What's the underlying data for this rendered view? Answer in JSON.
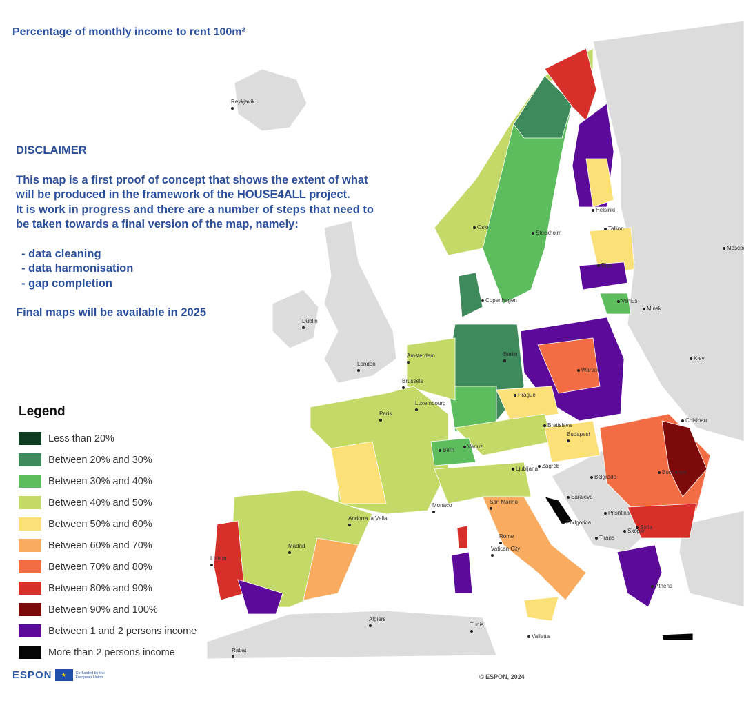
{
  "title": "Percentage of monthly income to rent 100m²",
  "disclaimer": {
    "heading": "DISCLAIMER",
    "paragraph": "This map is a first proof of concept that shows the extent of what will be produced in the framework of the HOUSE4ALL project.",
    "paragraph2": "It is work in progress and there are a number of steps that need to be taken towards a final version of the map, namely:",
    "steps": [
      "- data cleaning",
      "- data harmonisation",
      "- gap completion"
    ],
    "final": "Final maps will be available in 2025"
  },
  "legend": {
    "title": "Legend",
    "items": [
      {
        "label": "Less than 20%",
        "color": "#0f3d22"
      },
      {
        "label": "Between 20% and 30%",
        "color": "#3e8a5c"
      },
      {
        "label": "Between 30% and 40%",
        "color": "#5dbd5e"
      },
      {
        "label": "Between 40% and 50%",
        "color": "#c3d968"
      },
      {
        "label": "Between 50% and 60%",
        "color": "#fbdf77"
      },
      {
        "label": "Between 60% and 70%",
        "color": "#f9ab5f"
      },
      {
        "label": "Between 70% and 80%",
        "color": "#f26d43"
      },
      {
        "label": "Between 80% and 90%",
        "color": "#d7302a"
      },
      {
        "label": "Between 90% and 100%",
        "color": "#7d0a0a"
      },
      {
        "label": "Between 1 and 2 persons income",
        "color": "#5b0a9a"
      },
      {
        "label": "More than 2 persons income",
        "color": "#050505"
      }
    ]
  },
  "cities": [
    "Reykjavik",
    "Oslo",
    "Stockholm",
    "Helsinki",
    "Tallinn",
    "Riga",
    "Moscow",
    "Vilnius",
    "Minsk",
    "Copenhagen",
    "Dublin",
    "London",
    "Amsterdam",
    "Berlin",
    "Warsaw",
    "Kiev",
    "Brussels",
    "Luxembourg",
    "Prague",
    "Paris",
    "Bratislava",
    "Budapest",
    "Chisinau",
    "Bern",
    "Vaduz",
    "Ljubljana",
    "Zagreb",
    "Belgrade",
    "Bucharest",
    "San Marino",
    "Monaco",
    "Sarajevo",
    "Andorra la Vella",
    "Prishtina",
    "Sofia",
    "Podgorica",
    "Skopje",
    "Rome",
    "Tirana",
    "Vatican City",
    "Madrid",
    "Lisbon",
    "Athens",
    "Algiers",
    "Tunis",
    "Valletta",
    "Rabat"
  ],
  "footer": {
    "logo": "ESPON",
    "eu_text": "Co-funded by the European Union",
    "copyright": "© ESPON, 2024"
  }
}
